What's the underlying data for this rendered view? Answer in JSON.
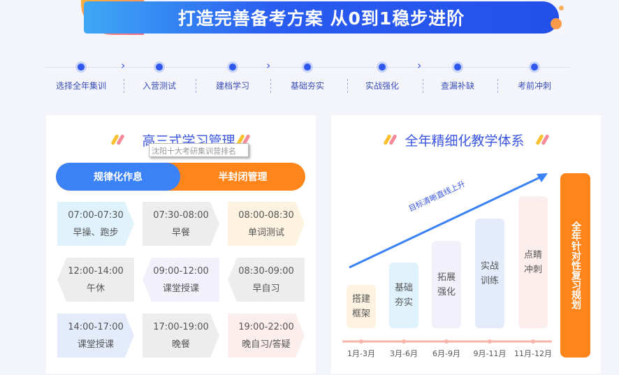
{
  "banner": {
    "title": "打造完善备考方案 从0到1稳步进阶"
  },
  "steps": [
    "选择全年集训",
    "入营测试",
    "建档学习",
    "基础夯实",
    "实战强化",
    "查漏补缺",
    "考前冲刺"
  ],
  "left": {
    "title": "高三式学习管理",
    "tooltip": "沈阳十大考研集训营排名",
    "tab_blue": "规律化作息",
    "tab_orange": "半封闭管理",
    "cells": [
      {
        "time": "07:00-07:30",
        "label": "早操、跑步",
        "color": "#e0f3fd"
      },
      {
        "time": "07:30-08:00",
        "label": "早餐",
        "color": "#ededed"
      },
      {
        "time": "08:00-08:30",
        "label": "单词测试",
        "color": "#fdf3e0"
      },
      {
        "time": "12:00-14:00",
        "label": "午休",
        "color": "#ededed"
      },
      {
        "time": "09:00-12:00",
        "label": "课堂授课",
        "color": "#f1f0fb"
      },
      {
        "time": "08:30-09:00",
        "label": "早自习",
        "color": "#ededed"
      },
      {
        "time": "14:00-17:00",
        "label": "课堂授课",
        "color": "#e4ecfb"
      },
      {
        "time": "17:00-19:00",
        "label": "晚餐",
        "color": "#ededed"
      },
      {
        "time": "19:00-22:00",
        "label": "晚自习/答疑",
        "color": "#fdeeee"
      }
    ]
  },
  "right": {
    "title": "全年精细化教学体系",
    "arrow_label": "目标清晰直线上升",
    "side_label": "全年针对性复习规划",
    "stages": [
      {
        "l1": "搭建",
        "l2": "框架",
        "month": "1月-3月",
        "color": "#fdf3e0"
      },
      {
        "l1": "基础",
        "l2": "夯实",
        "month": "3月-6月",
        "color": "#e0f3fd"
      },
      {
        "l1": "拓展",
        "l2": "强化",
        "month": "6月-9月",
        "color": "#f1f0fb"
      },
      {
        "l1": "实战",
        "l2": "训练",
        "month": "9月-11月",
        "color": "#e4ecfb"
      },
      {
        "l1": "点睛",
        "l2": "冲刺",
        "month": "11月-12月",
        "color": "#fdeeee"
      }
    ]
  },
  "colors": {
    "blue": "#3a82f6",
    "orange": "#ff851b",
    "title": "#3a55e0"
  }
}
